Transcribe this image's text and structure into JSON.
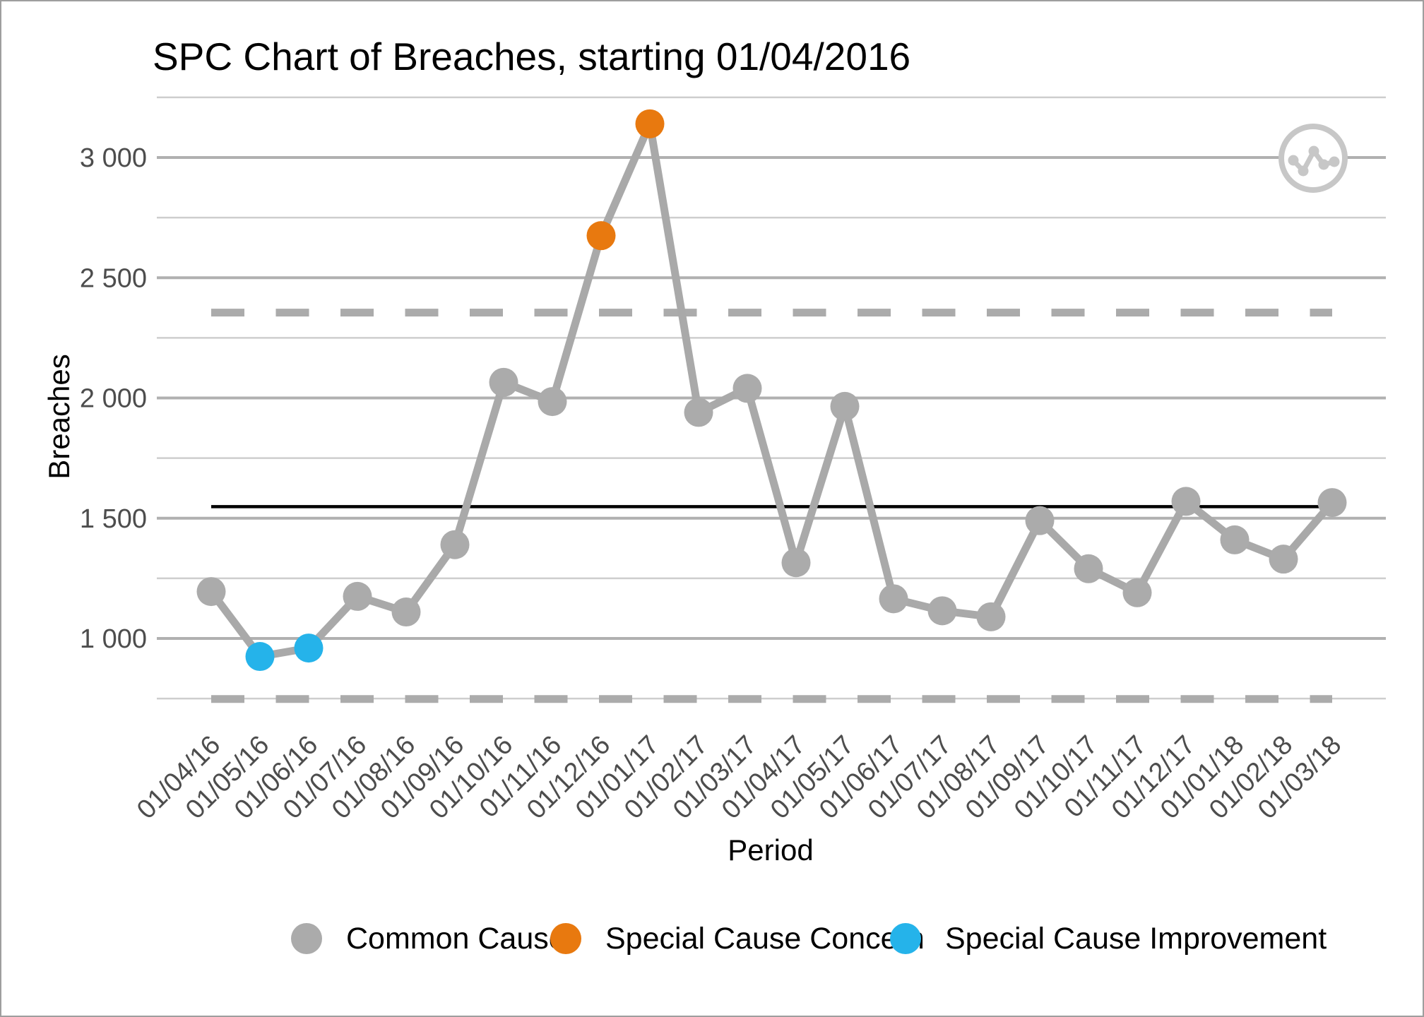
{
  "title": "SPC Chart of Breaches, starting 01/04/2016",
  "y_axis": {
    "label": "Breaches",
    "ticks": [
      {
        "label": "3 000",
        "value": 3000
      },
      {
        "label": "2 500",
        "value": 2500
      },
      {
        "label": "2 000",
        "value": 2000
      },
      {
        "label": "1 500",
        "value": 1500
      },
      {
        "label": "1 000",
        "value": 1000
      }
    ],
    "minor_gridlines": [
      750,
      1250,
      1750,
      2250,
      2750,
      3250
    ]
  },
  "x_axis": {
    "label": "Period"
  },
  "icon": {
    "name": "line-chart-watermark-icon"
  },
  "chart_data": {
    "type": "line",
    "title": "SPC Chart of Breaches, starting 01/04/2016",
    "xlabel": "Period",
    "ylabel": "Breaches",
    "x": [
      "01/04/16",
      "01/05/16",
      "01/06/16",
      "01/07/16",
      "01/08/16",
      "01/09/16",
      "01/10/16",
      "01/11/16",
      "01/12/16",
      "01/01/17",
      "01/02/17",
      "01/03/17",
      "01/04/17",
      "01/05/17",
      "01/06/17",
      "01/07/17",
      "01/08/17",
      "01/09/17",
      "01/10/17",
      "01/11/17",
      "01/12/17",
      "01/01/18",
      "01/02/18",
      "01/03/18"
    ],
    "series": [
      {
        "name": "Breaches",
        "values": [
          1195,
          925,
          960,
          1175,
          1110,
          1390,
          2065,
          1985,
          2675,
          3140,
          1940,
          2040,
          1315,
          1965,
          1165,
          1115,
          1090,
          1490,
          1290,
          1190,
          1570,
          1410,
          1330,
          1565
        ]
      }
    ],
    "point_classes": [
      "common",
      "improvement",
      "improvement",
      "common",
      "common",
      "common",
      "common",
      "common",
      "concern",
      "concern",
      "common",
      "common",
      "common",
      "common",
      "common",
      "common",
      "common",
      "common",
      "common",
      "common",
      "common",
      "common",
      "common",
      "common"
    ],
    "control_lines": {
      "center": 1548,
      "upper": 2355,
      "lower": 748
    },
    "ylim": [
      700,
      3300
    ],
    "grid": true,
    "legend_position": "bottom",
    "legend": [
      {
        "label": "Common Cause",
        "color": "#ababab"
      },
      {
        "label": "Special Cause Concern",
        "color": "#e8790f"
      },
      {
        "label": "Special Cause Improvement",
        "color": "#25b3ea"
      }
    ],
    "colors": {
      "line": "#a9a9a9",
      "grid_major": "#b0b0b0",
      "grid_minor": "#cecece",
      "center_line": "#000000",
      "limit_line": "#ababab",
      "tick_text": "#4d4d4d",
      "icon_gray": "#c7c7c7"
    }
  }
}
